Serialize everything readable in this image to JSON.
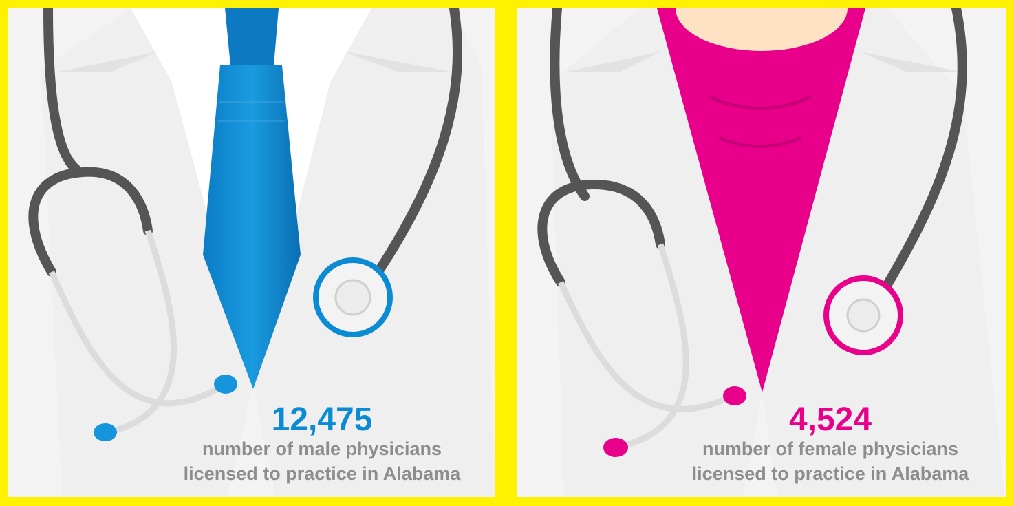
{
  "panels": [
    {
      "number": "12,475",
      "caption": [
        "number of male physicians",
        "licensed to practice in Alabama"
      ]
    },
    {
      "number": "4,524",
      "caption": [
        "number of female physicians",
        "licensed to practice in Alabama"
      ]
    }
  ]
}
